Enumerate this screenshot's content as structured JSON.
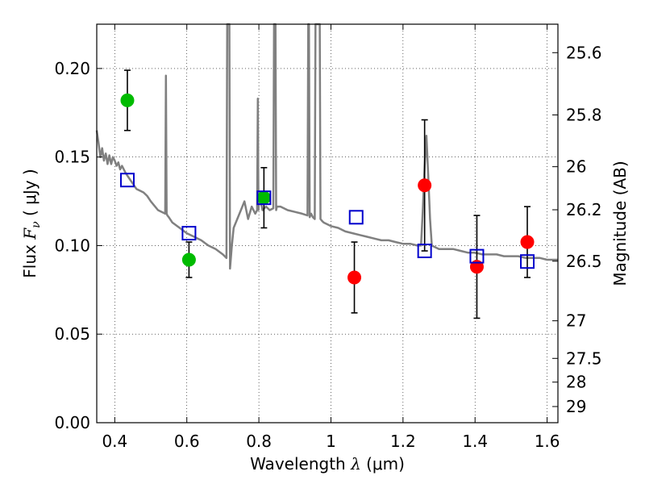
{
  "chart_data": {
    "type": "scatter",
    "xlabel_text": "Wavelength",
    "xlabel_symbol": "λ",
    "xlabel_unit": "(μm)",
    "ylabel_text": "Flux",
    "ylabel_symbol": "F",
    "ylabel_subscript": "ν",
    "ylabel_unit": "( μJy )",
    "y2label": "Magnitude (AB)",
    "xlim": [
      0.35,
      1.63
    ],
    "ylim": [
      0.0,
      0.225
    ],
    "grid": true,
    "x_ticks": [
      {
        "value": 0.4,
        "label": "0.4"
      },
      {
        "value": 0.6,
        "label": "0.6"
      },
      {
        "value": 0.8,
        "label": "0.8"
      },
      {
        "value": 1.0,
        "label": "1"
      },
      {
        "value": 1.2,
        "label": "1.2"
      },
      {
        "value": 1.4,
        "label": "1.4"
      },
      {
        "value": 1.6,
        "label": "1.6"
      }
    ],
    "y_ticks": [
      {
        "value": 0.0,
        "label": "0.00"
      },
      {
        "value": 0.05,
        "label": "0.05"
      },
      {
        "value": 0.1,
        "label": "0.10"
      },
      {
        "value": 0.15,
        "label": "0.15"
      },
      {
        "value": 0.2,
        "label": "0.20"
      }
    ],
    "y2_ticks": [
      {
        "value": 25.6,
        "label": "25.6"
      },
      {
        "value": 25.8,
        "label": "25.8"
      },
      {
        "value": 26.0,
        "label": "26"
      },
      {
        "value": 26.2,
        "label": "26.2"
      },
      {
        "value": 26.5,
        "label": "26.5"
      },
      {
        "value": 27.0,
        "label": "27"
      },
      {
        "value": 27.5,
        "label": "27.5"
      },
      {
        "value": 28.0,
        "label": "28"
      },
      {
        "value": 29.0,
        "label": "29"
      }
    ],
    "series": [
      {
        "marker": "circle",
        "color": "#00bb00",
        "points": [
          {
            "x": 0.435,
            "y": 0.182,
            "err": 0.017
          },
          {
            "x": 0.606,
            "y": 0.092,
            "err": 0.01
          },
          {
            "x": 0.814,
            "y": 0.127,
            "err": 0.017
          }
        ]
      },
      {
        "marker": "circle",
        "color": "#ff0000",
        "points": [
          {
            "x": 1.065,
            "y": 0.082,
            "err": 0.02
          },
          {
            "x": 1.26,
            "y": 0.134,
            "err": 0.037
          },
          {
            "x": 1.405,
            "y": 0.088,
            "err": 0.029
          },
          {
            "x": 1.545,
            "y": 0.102,
            "err": 0.02
          }
        ]
      },
      {
        "marker": "open-square",
        "color": "#0000cc",
        "points": [
          {
            "x": 0.435,
            "y": 0.137
          },
          {
            "x": 0.606,
            "y": 0.107
          },
          {
            "x": 0.814,
            "y": 0.127
          },
          {
            "x": 1.07,
            "y": 0.116
          },
          {
            "x": 1.26,
            "y": 0.097
          },
          {
            "x": 1.405,
            "y": 0.094
          },
          {
            "x": 1.545,
            "y": 0.091
          }
        ]
      }
    ],
    "model_spectrum": {
      "color": "#808080",
      "x": [
        0.35,
        0.355,
        0.36,
        0.365,
        0.37,
        0.375,
        0.38,
        0.385,
        0.39,
        0.395,
        0.4,
        0.405,
        0.41,
        0.415,
        0.42,
        0.43,
        0.44,
        0.45,
        0.46,
        0.47,
        0.48,
        0.49,
        0.5,
        0.52,
        0.54,
        0.542,
        0.544,
        0.546,
        0.55,
        0.56,
        0.58,
        0.6,
        0.62,
        0.64,
        0.66,
        0.68,
        0.7,
        0.71,
        0.712,
        0.714,
        0.716,
        0.718,
        0.72,
        0.725,
        0.73,
        0.74,
        0.75,
        0.76,
        0.77,
        0.78,
        0.79,
        0.795,
        0.797,
        0.799,
        0.801,
        0.803,
        0.805,
        0.81,
        0.82,
        0.83,
        0.84,
        0.842,
        0.844,
        0.846,
        0.848,
        0.85,
        0.86,
        0.88,
        0.9,
        0.92,
        0.935,
        0.937,
        0.939,
        0.941,
        0.945,
        0.95,
        0.955,
        0.957,
        0.959,
        0.961,
        0.963,
        0.965,
        0.967,
        0.969,
        0.971,
        0.975,
        0.98,
        1.0,
        1.02,
        1.04,
        1.06,
        1.08,
        1.1,
        1.12,
        1.14,
        1.16,
        1.18,
        1.2,
        1.22,
        1.24,
        1.25,
        1.255,
        1.26,
        1.265,
        1.27,
        1.275,
        1.28,
        1.29,
        1.3,
        1.32,
        1.34,
        1.36,
        1.38,
        1.4,
        1.42,
        1.44,
        1.46,
        1.48,
        1.5,
        1.52,
        1.54,
        1.56,
        1.58,
        1.6,
        1.63
      ],
      "y": [
        0.165,
        0.158,
        0.15,
        0.155,
        0.148,
        0.152,
        0.146,
        0.151,
        0.146,
        0.15,
        0.148,
        0.145,
        0.147,
        0.143,
        0.145,
        0.141,
        0.138,
        0.135,
        0.132,
        0.131,
        0.13,
        0.128,
        0.125,
        0.12,
        0.118,
        0.196,
        0.118,
        0.117,
        0.116,
        0.113,
        0.11,
        0.107,
        0.105,
        0.103,
        0.1,
        0.098,
        0.095,
        0.093,
        0.225,
        0.225,
        0.225,
        0.225,
        0.087,
        0.1,
        0.11,
        0.115,
        0.12,
        0.125,
        0.115,
        0.122,
        0.118,
        0.12,
        0.183,
        0.12,
        0.13,
        0.128,
        0.125,
        0.12,
        0.122,
        0.12,
        0.121,
        0.225,
        0.225,
        0.225,
        0.12,
        0.122,
        0.122,
        0.12,
        0.119,
        0.118,
        0.117,
        0.225,
        0.225,
        0.116,
        0.118,
        0.116,
        0.115,
        0.225,
        0.225,
        0.225,
        0.225,
        0.225,
        0.225,
        0.225,
        0.115,
        0.114,
        0.113,
        0.111,
        0.11,
        0.108,
        0.107,
        0.106,
        0.105,
        0.104,
        0.103,
        0.103,
        0.102,
        0.101,
        0.101,
        0.1,
        0.1,
        0.12,
        0.145,
        0.162,
        0.14,
        0.115,
        0.1,
        0.099,
        0.098,
        0.098,
        0.098,
        0.097,
        0.096,
        0.096,
        0.095,
        0.095,
        0.095,
        0.094,
        0.094,
        0.094,
        0.093,
        0.093,
        0.093,
        0.092,
        0.092
      ]
    }
  }
}
